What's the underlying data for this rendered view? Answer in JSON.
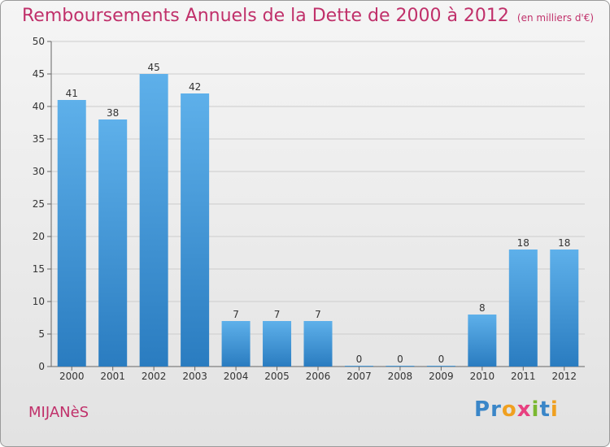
{
  "header": {
    "title": "Remboursements Annuels de la Dette de 2000 à 2012",
    "unit": "(en milliers d'€)"
  },
  "footer": {
    "town": "MIJANèS",
    "brand": "Proxiti",
    "brand_letters": [
      {
        "ch": "P",
        "color": "#3a86c8"
      },
      {
        "ch": "r",
        "color": "#3a86c8"
      },
      {
        "ch": "o",
        "color": "#f0a020"
      },
      {
        "ch": "x",
        "color": "#e84080"
      },
      {
        "ch": "i",
        "color": "#7ab830"
      },
      {
        "ch": "t",
        "color": "#3a86c8"
      },
      {
        "ch": "i",
        "color": "#f0a020"
      }
    ]
  },
  "colors": {
    "bar_top": "#5eb0ea",
    "bar_bottom": "#2a7cc0",
    "accent": "#c0306a"
  },
  "chart_data": {
    "type": "bar",
    "title": "Remboursements Annuels de la Dette de 2000 à 2012",
    "ylabel": "",
    "xlabel": "",
    "categories": [
      "2000",
      "2001",
      "2002",
      "2003",
      "2004",
      "2005",
      "2006",
      "2007",
      "2008",
      "2009",
      "2010",
      "2011",
      "2012"
    ],
    "values": [
      41,
      38,
      45,
      42,
      7,
      7,
      7,
      0,
      0,
      0,
      8,
      18,
      18
    ],
    "ylim": [
      0,
      50
    ],
    "yticks": [
      0,
      5,
      10,
      15,
      20,
      25,
      30,
      35,
      40,
      45,
      50
    ],
    "grid": true,
    "data_labels": true
  }
}
